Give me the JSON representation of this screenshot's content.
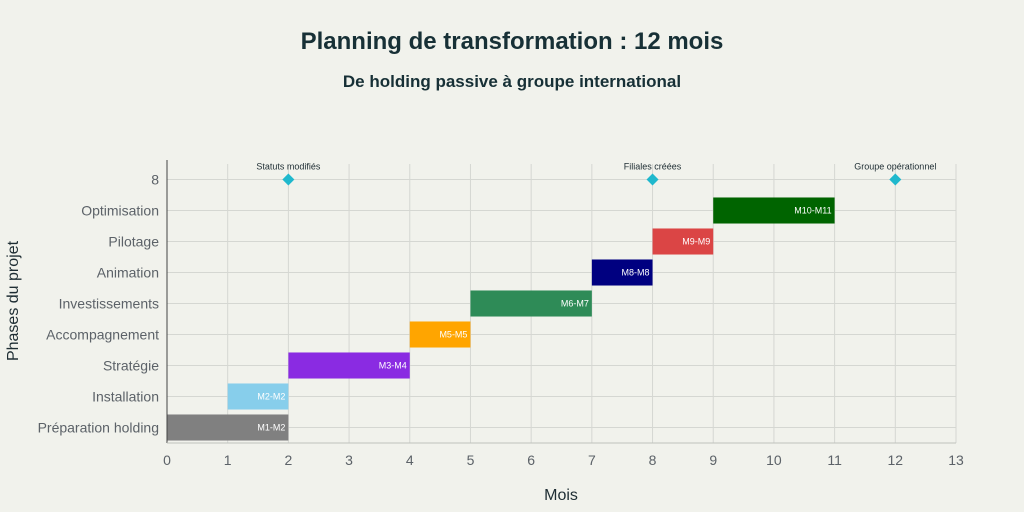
{
  "chart_data": {
    "type": "gantt",
    "title": "Planning de transformation : 12 mois",
    "subtitle": "De holding passive à groupe international",
    "xlabel": "Mois",
    "ylabel": "Phases du projet",
    "xlim": [
      0,
      13
    ],
    "xticks": [
      0,
      1,
      2,
      3,
      4,
      5,
      6,
      7,
      8,
      9,
      10,
      11,
      12,
      13
    ],
    "categories": [
      "Préparation holding",
      "Installation",
      "Stratégie",
      "Accompagnement",
      "Investissements",
      "Animation",
      "Pilotage",
      "Optimisation",
      "8"
    ],
    "grid": true,
    "tasks": [
      {
        "phase": "Préparation holding",
        "start": 0,
        "end": 2,
        "label": "M1-M2",
        "color": "#808080"
      },
      {
        "phase": "Installation",
        "start": 1,
        "end": 2,
        "label": "M2-M2",
        "color": "#87ceeb"
      },
      {
        "phase": "Stratégie",
        "start": 2,
        "end": 4,
        "label": "M3-M4",
        "color": "#8a2be2"
      },
      {
        "phase": "Accompagnement",
        "start": 4,
        "end": 5,
        "label": "M5-M5",
        "color": "#ffa500"
      },
      {
        "phase": "Investissements",
        "start": 5,
        "end": 7,
        "label": "M6-M7",
        "color": "#2e8b57"
      },
      {
        "phase": "Animation",
        "start": 7,
        "end": 8,
        "label": "M8-M8",
        "color": "#000080"
      },
      {
        "phase": "Pilotage",
        "start": 8,
        "end": 9,
        "label": "M9-M9",
        "color": "#db4545"
      },
      {
        "phase": "Optimisation",
        "start": 9,
        "end": 11,
        "label": "M10-M11",
        "color": "#006400"
      }
    ],
    "milestones": [
      {
        "x": 2,
        "row": "8",
        "label": "Statuts modifiés",
        "color": "#1fb8cd"
      },
      {
        "x": 8,
        "row": "8",
        "label": "Filiales créées",
        "color": "#1fb8cd"
      },
      {
        "x": 12,
        "row": "8",
        "label": "Groupe opérationnel",
        "color": "#1fb8cd"
      }
    ]
  }
}
